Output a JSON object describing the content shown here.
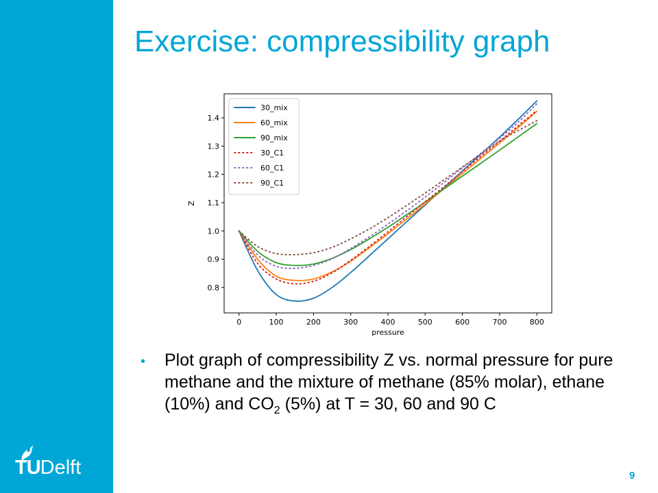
{
  "slide": {
    "title": "Exercise: compressibility graph",
    "page_number": "9",
    "logo": {
      "tu": "TU",
      "delft": "Delft"
    },
    "bullet": {
      "part1": "Plot graph of compressibility Z vs. normal pressure for pure methane and the mixture of methane (85% molar), ethane (10%) and CO",
      "sub": "2",
      "part2": " (5%) at T = 30, 60 and 90 C"
    },
    "colors": {
      "accent": "#00a6d6"
    }
  },
  "chart_data": {
    "type": "line",
    "xlabel": "pressure",
    "ylabel": "Z",
    "xlim": [
      -40,
      840
    ],
    "ylim": [
      0.71,
      1.485
    ],
    "xticks": [
      0,
      100,
      200,
      300,
      400,
      500,
      600,
      700,
      800
    ],
    "yticks": [
      0.8,
      0.9,
      1.0,
      1.1,
      1.2,
      1.3,
      1.4
    ],
    "x": [
      0,
      50,
      100,
      150,
      200,
      250,
      300,
      350,
      400,
      450,
      500,
      550,
      600,
      650,
      700,
      750,
      800
    ],
    "legend_position": "top-left",
    "series": [
      {
        "name": "30_mix",
        "color": "#1f77b4",
        "style": "solid",
        "values": [
          1.0,
          0.86,
          0.775,
          0.752,
          0.762,
          0.8,
          0.853,
          0.912,
          0.972,
          1.032,
          1.092,
          1.152,
          1.212,
          1.272,
          1.332,
          1.395,
          1.46
        ]
      },
      {
        "name": "60_mix",
        "color": "#ff7f0e",
        "style": "solid",
        "values": [
          1.0,
          0.9,
          0.84,
          0.825,
          0.83,
          0.855,
          0.893,
          0.94,
          0.99,
          1.042,
          1.095,
          1.149,
          1.203,
          1.257,
          1.311,
          1.366,
          1.423
        ]
      },
      {
        "name": "90_mix",
        "color": "#2ca02c",
        "style": "solid",
        "values": [
          1.0,
          0.928,
          0.888,
          0.878,
          0.883,
          0.903,
          0.934,
          0.972,
          1.013,
          1.057,
          1.102,
          1.148,
          1.194,
          1.24,
          1.286,
          1.333,
          1.38
        ]
      },
      {
        "name": "30_C1",
        "color": "#d62728",
        "style": "dotted",
        "values": [
          1.0,
          0.885,
          0.83,
          0.813,
          0.822,
          0.852,
          0.896,
          0.945,
          0.997,
          1.05,
          1.103,
          1.156,
          1.21,
          1.264,
          1.318,
          1.372,
          1.426
        ]
      },
      {
        "name": "60_C1",
        "color": "#9467bd",
        "style": "dotted",
        "values": [
          1.0,
          0.915,
          0.875,
          0.868,
          0.878,
          0.902,
          0.938,
          0.979,
          1.024,
          1.071,
          1.12,
          1.171,
          1.223,
          1.275,
          1.328,
          1.385,
          1.45
        ]
      },
      {
        "name": "90_C1",
        "color": "#8c564b",
        "style": "dotted",
        "values": [
          1.0,
          0.945,
          0.92,
          0.916,
          0.923,
          0.942,
          0.972,
          1.007,
          1.047,
          1.09,
          1.134,
          1.18,
          1.226,
          1.272,
          1.318,
          1.355,
          1.39
        ]
      }
    ]
  }
}
